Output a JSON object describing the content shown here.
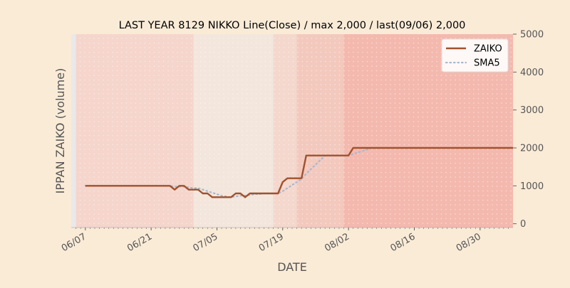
{
  "chart_data": {
    "type": "line",
    "title": "LAST YEAR 8129 NIKKO Line(Close) / max 2,000 / last(09/06) 2,000",
    "xlabel": "DATE",
    "ylabel": "IPPAN ZAIKO (volume)",
    "x_start": "06/07",
    "x_end": "09/06",
    "xlim": [
      "06/04",
      "09/06"
    ],
    "ylim": [
      -100,
      5000
    ],
    "yaxis_side": "right",
    "yticks": [
      0,
      1000,
      2000,
      3000,
      4000,
      5000
    ],
    "ytick_labels": [
      "0",
      "1000",
      "2000",
      "3000",
      "4000",
      "5000"
    ],
    "xticks": [
      "06/07",
      "06/21",
      "07/05",
      "07/19",
      "08/02",
      "08/16",
      "08/30"
    ],
    "grid": false,
    "legend_position": "top-right",
    "background_bands": [
      {
        "from": "06/05",
        "to": "06/30",
        "color": "#f5d5cc"
      },
      {
        "from": "06/30",
        "to": "07/17",
        "color": "#f3e6dc"
      },
      {
        "from": "07/17",
        "to": "07/22",
        "color": "#f4d7cd"
      },
      {
        "from": "07/22",
        "to": "08/01",
        "color": "#f3c9be"
      },
      {
        "from": "08/01",
        "to": "09/06",
        "color": "#f4b9ae"
      }
    ],
    "series": [
      {
        "name": "ZAIKO",
        "style": "solid",
        "color": "#a0522d",
        "values": [
          [
            "06/07",
            1000
          ],
          [
            "06/08",
            1000
          ],
          [
            "06/09",
            1000
          ],
          [
            "06/10",
            1000
          ],
          [
            "06/11",
            1000
          ],
          [
            "06/12",
            1000
          ],
          [
            "06/13",
            1000
          ],
          [
            "06/14",
            1000
          ],
          [
            "06/15",
            1000
          ],
          [
            "06/16",
            1000
          ],
          [
            "06/17",
            1000
          ],
          [
            "06/18",
            1000
          ],
          [
            "06/19",
            1000
          ],
          [
            "06/20",
            1000
          ],
          [
            "06/21",
            1000
          ],
          [
            "06/22",
            1000
          ],
          [
            "06/23",
            1000
          ],
          [
            "06/24",
            1000
          ],
          [
            "06/25",
            1000
          ],
          [
            "06/26",
            900
          ],
          [
            "06/27",
            1000
          ],
          [
            "06/28",
            1000
          ],
          [
            "06/29",
            900
          ],
          [
            "06/30",
            900
          ],
          [
            "07/01",
            900
          ],
          [
            "07/02",
            800
          ],
          [
            "07/03",
            800
          ],
          [
            "07/04",
            700
          ],
          [
            "07/05",
            700
          ],
          [
            "07/06",
            700
          ],
          [
            "07/07",
            700
          ],
          [
            "07/08",
            700
          ],
          [
            "07/09",
            800
          ],
          [
            "07/10",
            800
          ],
          [
            "07/11",
            700
          ],
          [
            "07/12",
            800
          ],
          [
            "07/13",
            800
          ],
          [
            "07/14",
            800
          ],
          [
            "07/15",
            800
          ],
          [
            "07/16",
            800
          ],
          [
            "07/17",
            800
          ],
          [
            "07/18",
            800
          ],
          [
            "07/19",
            1100
          ],
          [
            "07/20",
            1200
          ],
          [
            "07/21",
            1200
          ],
          [
            "07/22",
            1200
          ],
          [
            "07/23",
            1200
          ],
          [
            "07/24",
            1800
          ],
          [
            "07/25",
            1800
          ],
          [
            "07/26",
            1800
          ],
          [
            "07/27",
            1800
          ],
          [
            "07/28",
            1800
          ],
          [
            "07/29",
            1800
          ],
          [
            "07/30",
            1800
          ],
          [
            "07/31",
            1800
          ],
          [
            "08/01",
            1800
          ],
          [
            "08/02",
            1800
          ],
          [
            "08/03",
            2000
          ],
          [
            "08/04",
            2000
          ],
          [
            "08/05",
            2000
          ],
          [
            "08/06",
            2000
          ],
          [
            "08/07",
            2000
          ],
          [
            "08/08",
            2000
          ],
          [
            "08/09",
            2000
          ],
          [
            "08/10",
            2000
          ],
          [
            "08/11",
            2000
          ],
          [
            "08/12",
            2000
          ],
          [
            "08/13",
            2000
          ],
          [
            "08/14",
            2000
          ],
          [
            "08/15",
            2000
          ],
          [
            "08/16",
            2000
          ],
          [
            "08/17",
            2000
          ],
          [
            "08/18",
            2000
          ],
          [
            "08/19",
            2000
          ],
          [
            "08/20",
            2000
          ],
          [
            "08/21",
            2000
          ],
          [
            "08/22",
            2000
          ],
          [
            "08/23",
            2000
          ],
          [
            "08/24",
            2000
          ],
          [
            "08/25",
            2000
          ],
          [
            "08/26",
            2000
          ],
          [
            "08/27",
            2000
          ],
          [
            "08/28",
            2000
          ],
          [
            "08/29",
            2000
          ],
          [
            "08/30",
            2000
          ],
          [
            "08/31",
            2000
          ],
          [
            "09/01",
            2000
          ],
          [
            "09/02",
            2000
          ],
          [
            "09/03",
            2000
          ],
          [
            "09/04",
            2000
          ],
          [
            "09/05",
            2000
          ],
          [
            "09/06",
            2000
          ]
        ]
      },
      {
        "name": "SMA5",
        "style": "dotted",
        "color": "#a8b8d0",
        "values": [
          [
            "06/07",
            1000
          ],
          [
            "06/08",
            1000
          ],
          [
            "06/09",
            1000
          ],
          [
            "06/10",
            1000
          ],
          [
            "06/11",
            1000
          ],
          [
            "06/12",
            1000
          ],
          [
            "06/13",
            1000
          ],
          [
            "06/14",
            1000
          ],
          [
            "06/15",
            1000
          ],
          [
            "06/16",
            1000
          ],
          [
            "06/17",
            1000
          ],
          [
            "06/18",
            1000
          ],
          [
            "06/19",
            1000
          ],
          [
            "06/20",
            1000
          ],
          [
            "06/21",
            1000
          ],
          [
            "06/22",
            1000
          ],
          [
            "06/23",
            1000
          ],
          [
            "06/24",
            1000
          ],
          [
            "06/25",
            1000
          ],
          [
            "06/26",
            980
          ],
          [
            "06/27",
            980
          ],
          [
            "06/28",
            980
          ],
          [
            "06/29",
            960
          ],
          [
            "06/30",
            940
          ],
          [
            "07/01",
            940
          ],
          [
            "07/02",
            900
          ],
          [
            "07/03",
            860
          ],
          [
            "07/04",
            820
          ],
          [
            "07/05",
            780
          ],
          [
            "07/06",
            740
          ],
          [
            "07/07",
            720
          ],
          [
            "07/08",
            700
          ],
          [
            "07/09",
            720
          ],
          [
            "07/10",
            740
          ],
          [
            "07/11",
            740
          ],
          [
            "07/12",
            760
          ],
          [
            "07/13",
            780
          ],
          [
            "07/14",
            780
          ],
          [
            "07/15",
            800
          ],
          [
            "07/16",
            800
          ],
          [
            "07/17",
            800
          ],
          [
            "07/18",
            800
          ],
          [
            "07/19",
            860
          ],
          [
            "07/20",
            940
          ],
          [
            "07/21",
            1020
          ],
          [
            "07/22",
            1100
          ],
          [
            "07/23",
            1180
          ],
          [
            "07/24",
            1320
          ],
          [
            "07/25",
            1440
          ],
          [
            "07/26",
            1560
          ],
          [
            "07/27",
            1680
          ],
          [
            "07/28",
            1800
          ],
          [
            "07/29",
            1800
          ],
          [
            "07/30",
            1800
          ],
          [
            "07/31",
            1800
          ],
          [
            "08/01",
            1800
          ],
          [
            "08/02",
            1800
          ],
          [
            "08/03",
            1840
          ],
          [
            "08/04",
            1880
          ],
          [
            "08/05",
            1920
          ],
          [
            "08/06",
            1960
          ],
          [
            "08/07",
            2000
          ],
          [
            "08/08",
            2000
          ],
          [
            "08/09",
            2000
          ],
          [
            "08/10",
            2000
          ],
          [
            "08/11",
            2000
          ],
          [
            "08/12",
            2000
          ],
          [
            "08/13",
            2000
          ],
          [
            "08/14",
            2000
          ],
          [
            "08/15",
            2000
          ],
          [
            "08/16",
            2000
          ],
          [
            "08/17",
            2000
          ],
          [
            "08/18",
            2000
          ],
          [
            "08/19",
            2000
          ],
          [
            "08/20",
            2000
          ],
          [
            "08/21",
            2000
          ],
          [
            "08/22",
            2000
          ],
          [
            "08/23",
            2000
          ],
          [
            "08/24",
            2000
          ],
          [
            "08/25",
            2000
          ],
          [
            "08/26",
            2000
          ],
          [
            "08/27",
            2000
          ],
          [
            "08/28",
            2000
          ],
          [
            "08/29",
            2000
          ],
          [
            "08/30",
            2000
          ],
          [
            "08/31",
            2000
          ],
          [
            "09/01",
            2000
          ],
          [
            "09/02",
            2000
          ],
          [
            "09/03",
            2000
          ],
          [
            "09/04",
            2000
          ],
          [
            "09/05",
            2000
          ],
          [
            "09/06",
            2000
          ]
        ]
      }
    ]
  }
}
